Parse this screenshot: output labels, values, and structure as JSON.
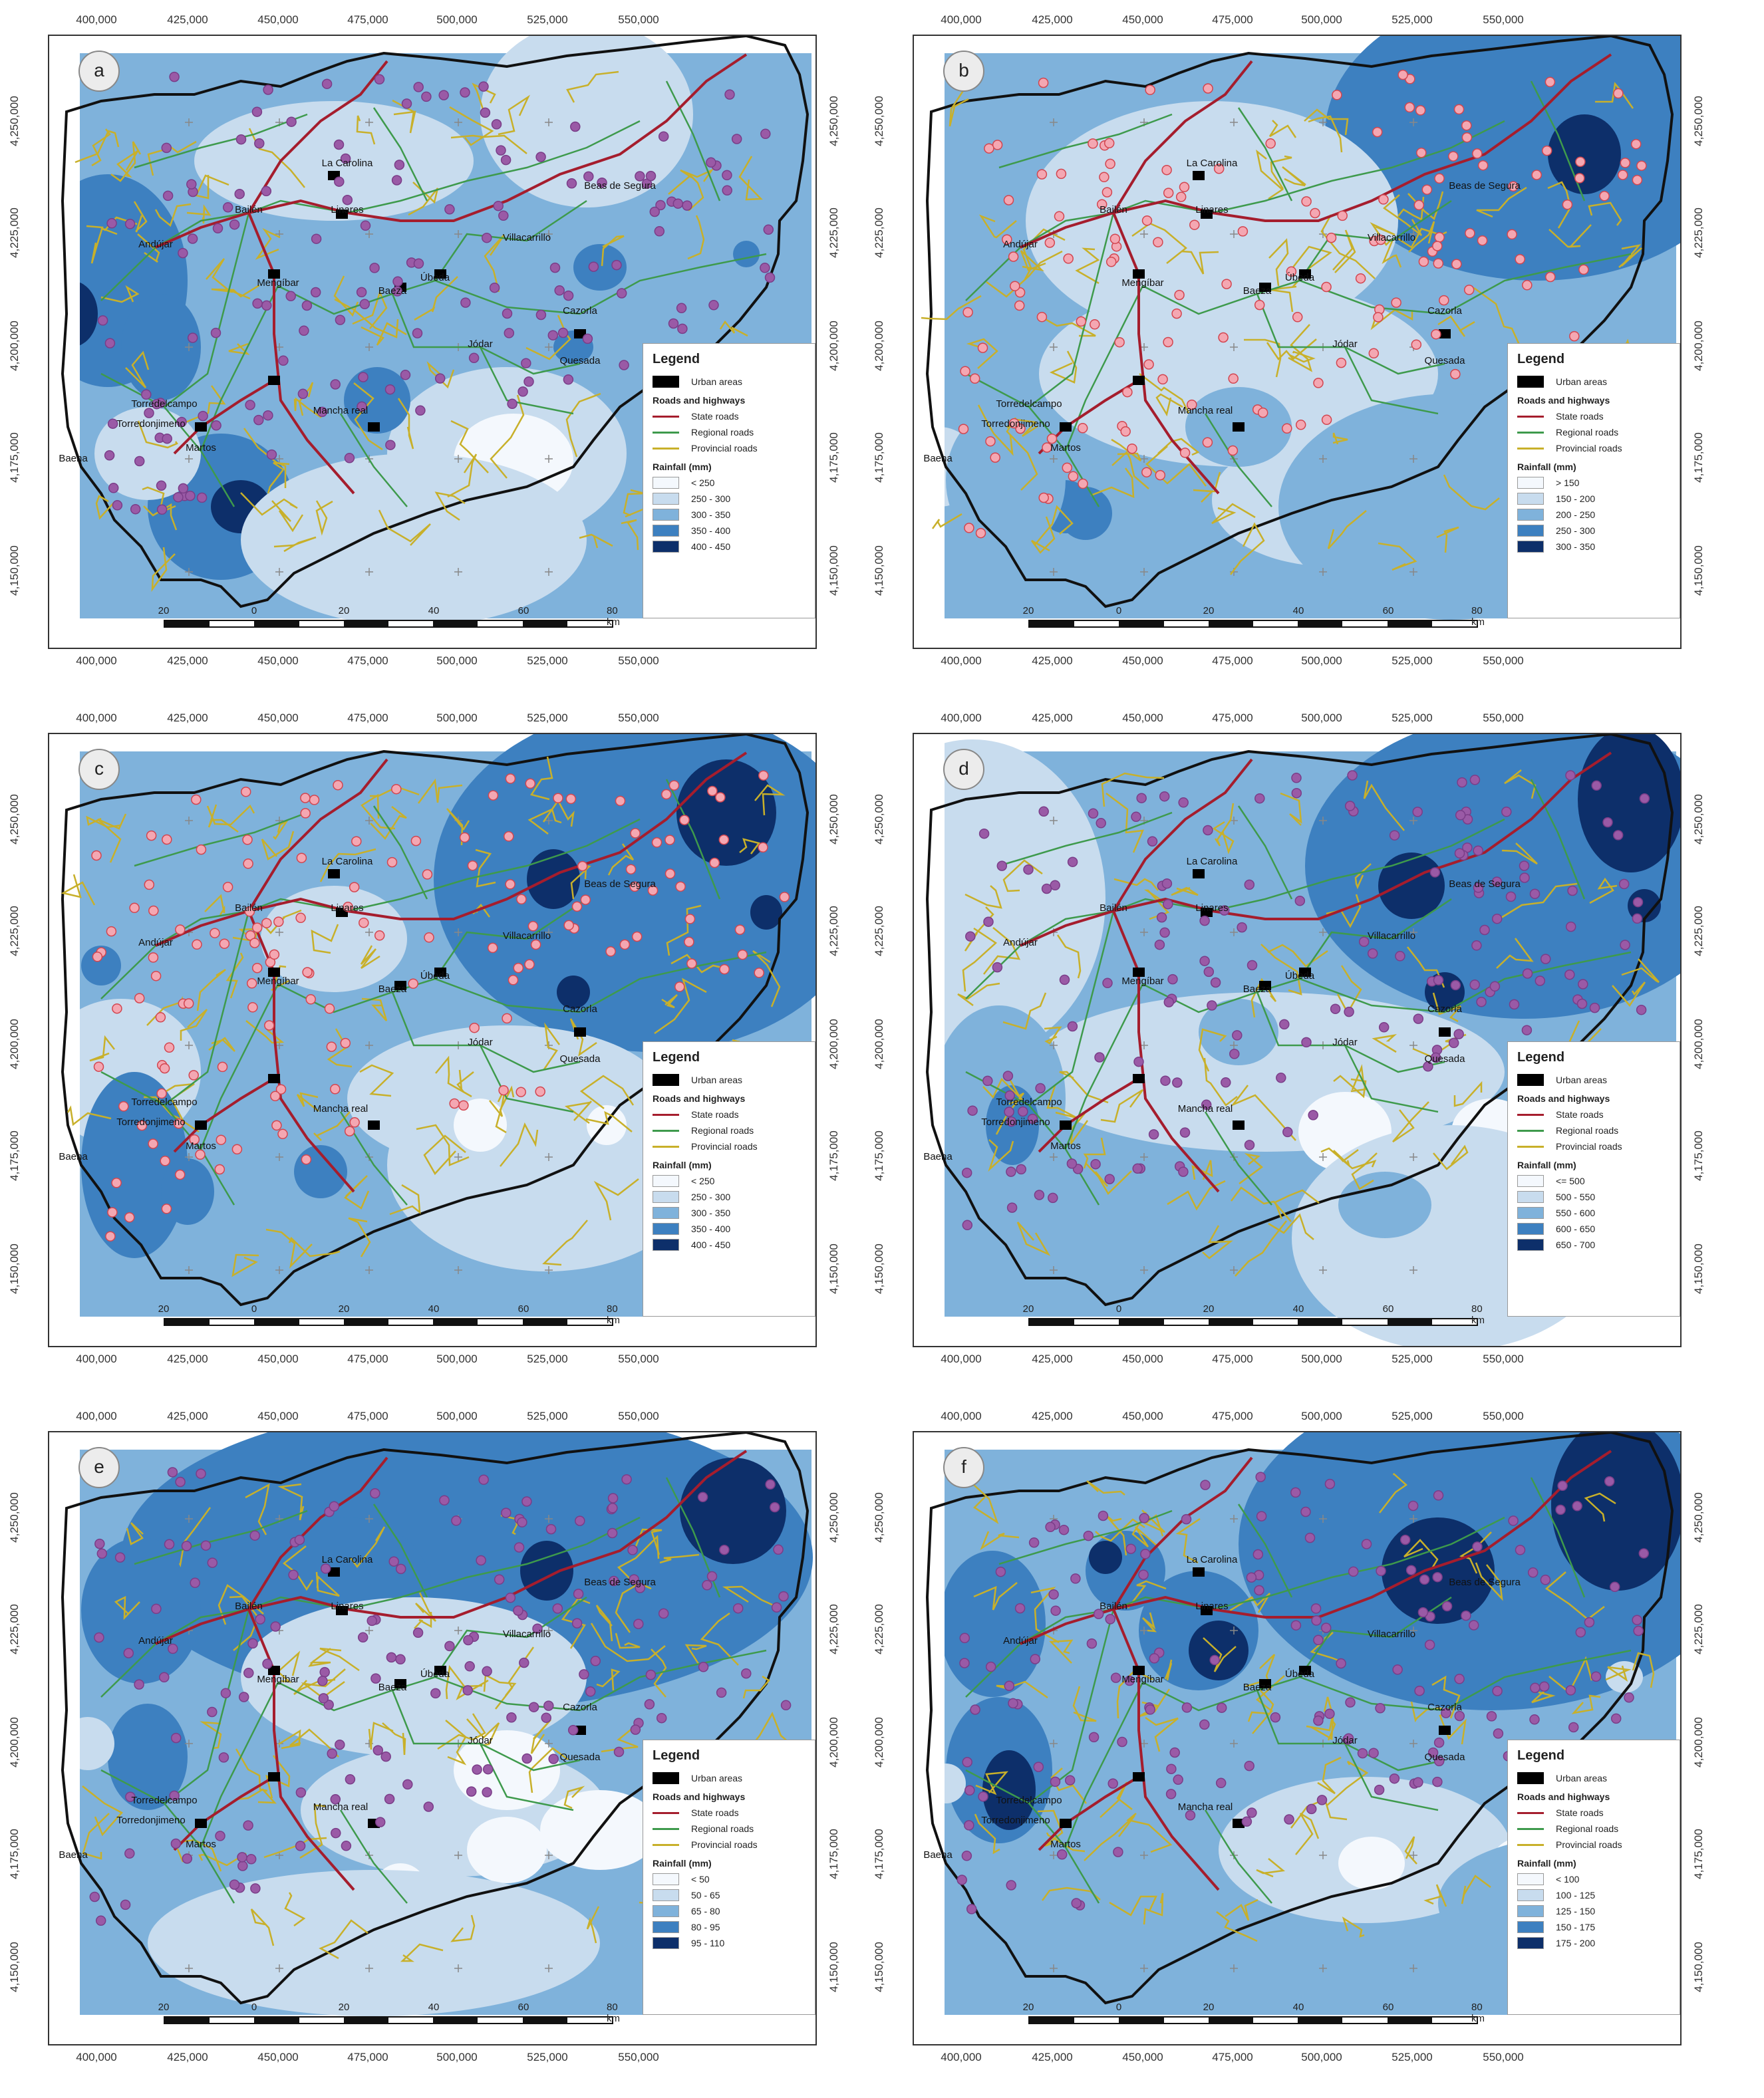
{
  "x_ticks": [
    "400,000",
    "425,000",
    "450,000",
    "475,000",
    "500,000",
    "525,000",
    "550,000"
  ],
  "y_ticks": [
    "4,250,000",
    "4,225,000",
    "4,200,000",
    "4,175,000",
    "4,150,000"
  ],
  "towns": [
    "La Carolina",
    "Beas de Segura",
    "Linares",
    "Bailén",
    "Villacarrillo",
    "Andújar",
    "Mengíbar",
    "Baeza",
    "Úbeda",
    "Cazorla",
    "Jódar",
    "Quesada",
    "Torredelcampo",
    "Torredonjimeno",
    "Mancha real",
    "Martos",
    "Baena"
  ],
  "legend": {
    "title": "Legend",
    "urban": "Urban areas",
    "roads_title": "Roads and highways",
    "state": "State roads",
    "regional": "Regional roads",
    "provincial": "Provincial roads",
    "rain_title": "Rainfall (mm)"
  },
  "scalebar": [
    "20",
    "0",
    "20",
    "40",
    "60",
    "80 km"
  ],
  "colors": {
    "c0": "#f4f8fd",
    "c1": "#c8dcee",
    "c2": "#7fb2db",
    "c3": "#3d80c0",
    "c4": "#0d2f6a",
    "state_road": "#a51d2d",
    "regional_road": "#3e9a4c",
    "provincial_road": "#c8b02a",
    "points_purple": "#9a5aa6",
    "points_pink": "#f4a7b2"
  },
  "panels": [
    {
      "label": "a",
      "classes": [
        "< 250",
        "250 - 300",
        "300 - 350",
        "350 - 400",
        "400 - 450"
      ],
      "points": "purple"
    },
    {
      "label": "b",
      "classes": [
        "> 150",
        "150 - 200",
        "200 - 250",
        "250 - 300",
        "300 - 350"
      ],
      "points": "pink"
    },
    {
      "label": "c",
      "classes": [
        "< 250",
        "250 - 300",
        "300 - 350",
        "350 - 400",
        "400 - 450"
      ],
      "points": "pink"
    },
    {
      "label": "d",
      "classes": [
        "<= 500",
        "500 - 550",
        "550 - 600",
        "600 - 650",
        "650 - 700"
      ],
      "points": "purple"
    },
    {
      "label": "e",
      "classes": [
        "< 50",
        "50 - 65",
        "65 - 80",
        "80 - 95",
        "95 - 110"
      ],
      "points": "purple"
    },
    {
      "label": "f",
      "classes": [
        "< 100",
        "100 - 125",
        "125 - 150",
        "150 - 175",
        "175 - 200"
      ],
      "points": "purple"
    }
  ]
}
